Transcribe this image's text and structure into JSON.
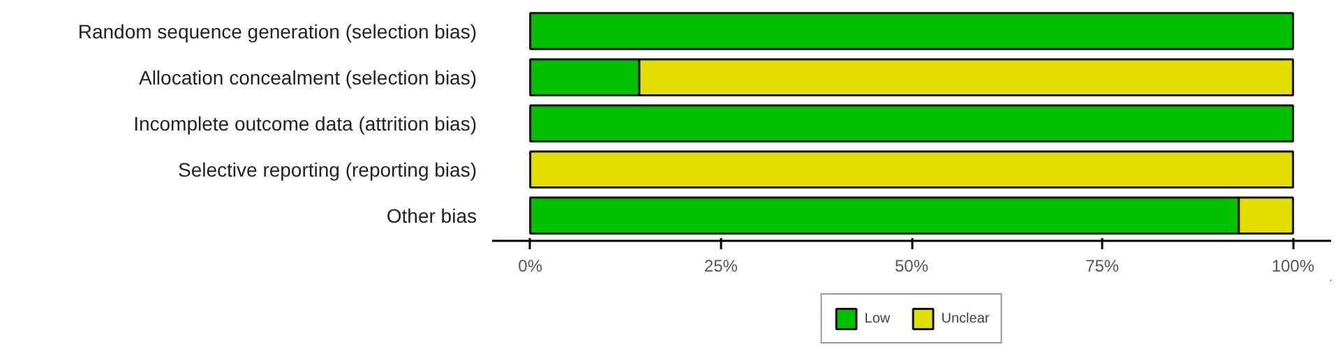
{
  "chart_data": {
    "type": "bar",
    "orientation": "horizontal",
    "stacked": true,
    "categories": [
      "Random sequence generation (selection bias)",
      "Allocation concealment (selection bias)",
      "Incomplete outcome data (attrition bias)",
      "Selective reporting (reporting bias)",
      "Other bias"
    ],
    "series": [
      {
        "name": "Low",
        "color": "#00c000",
        "values": [
          100,
          14.3,
          100,
          0,
          92.9
        ]
      },
      {
        "name": "Unclear",
        "color": "#e3dd00",
        "values": [
          0,
          85.7,
          0,
          100,
          7.1
        ]
      }
    ],
    "xlim": [
      -5,
      105
    ],
    "xticks": [
      {
        "value": 0,
        "label": "0%"
      },
      {
        "value": 25,
        "label": "25%"
      },
      {
        "value": 50,
        "label": "50%"
      },
      {
        "value": 75,
        "label": "75%"
      },
      {
        "value": 100,
        "label": "100%"
      }
    ],
    "grid": false,
    "legend": "bottom"
  }
}
